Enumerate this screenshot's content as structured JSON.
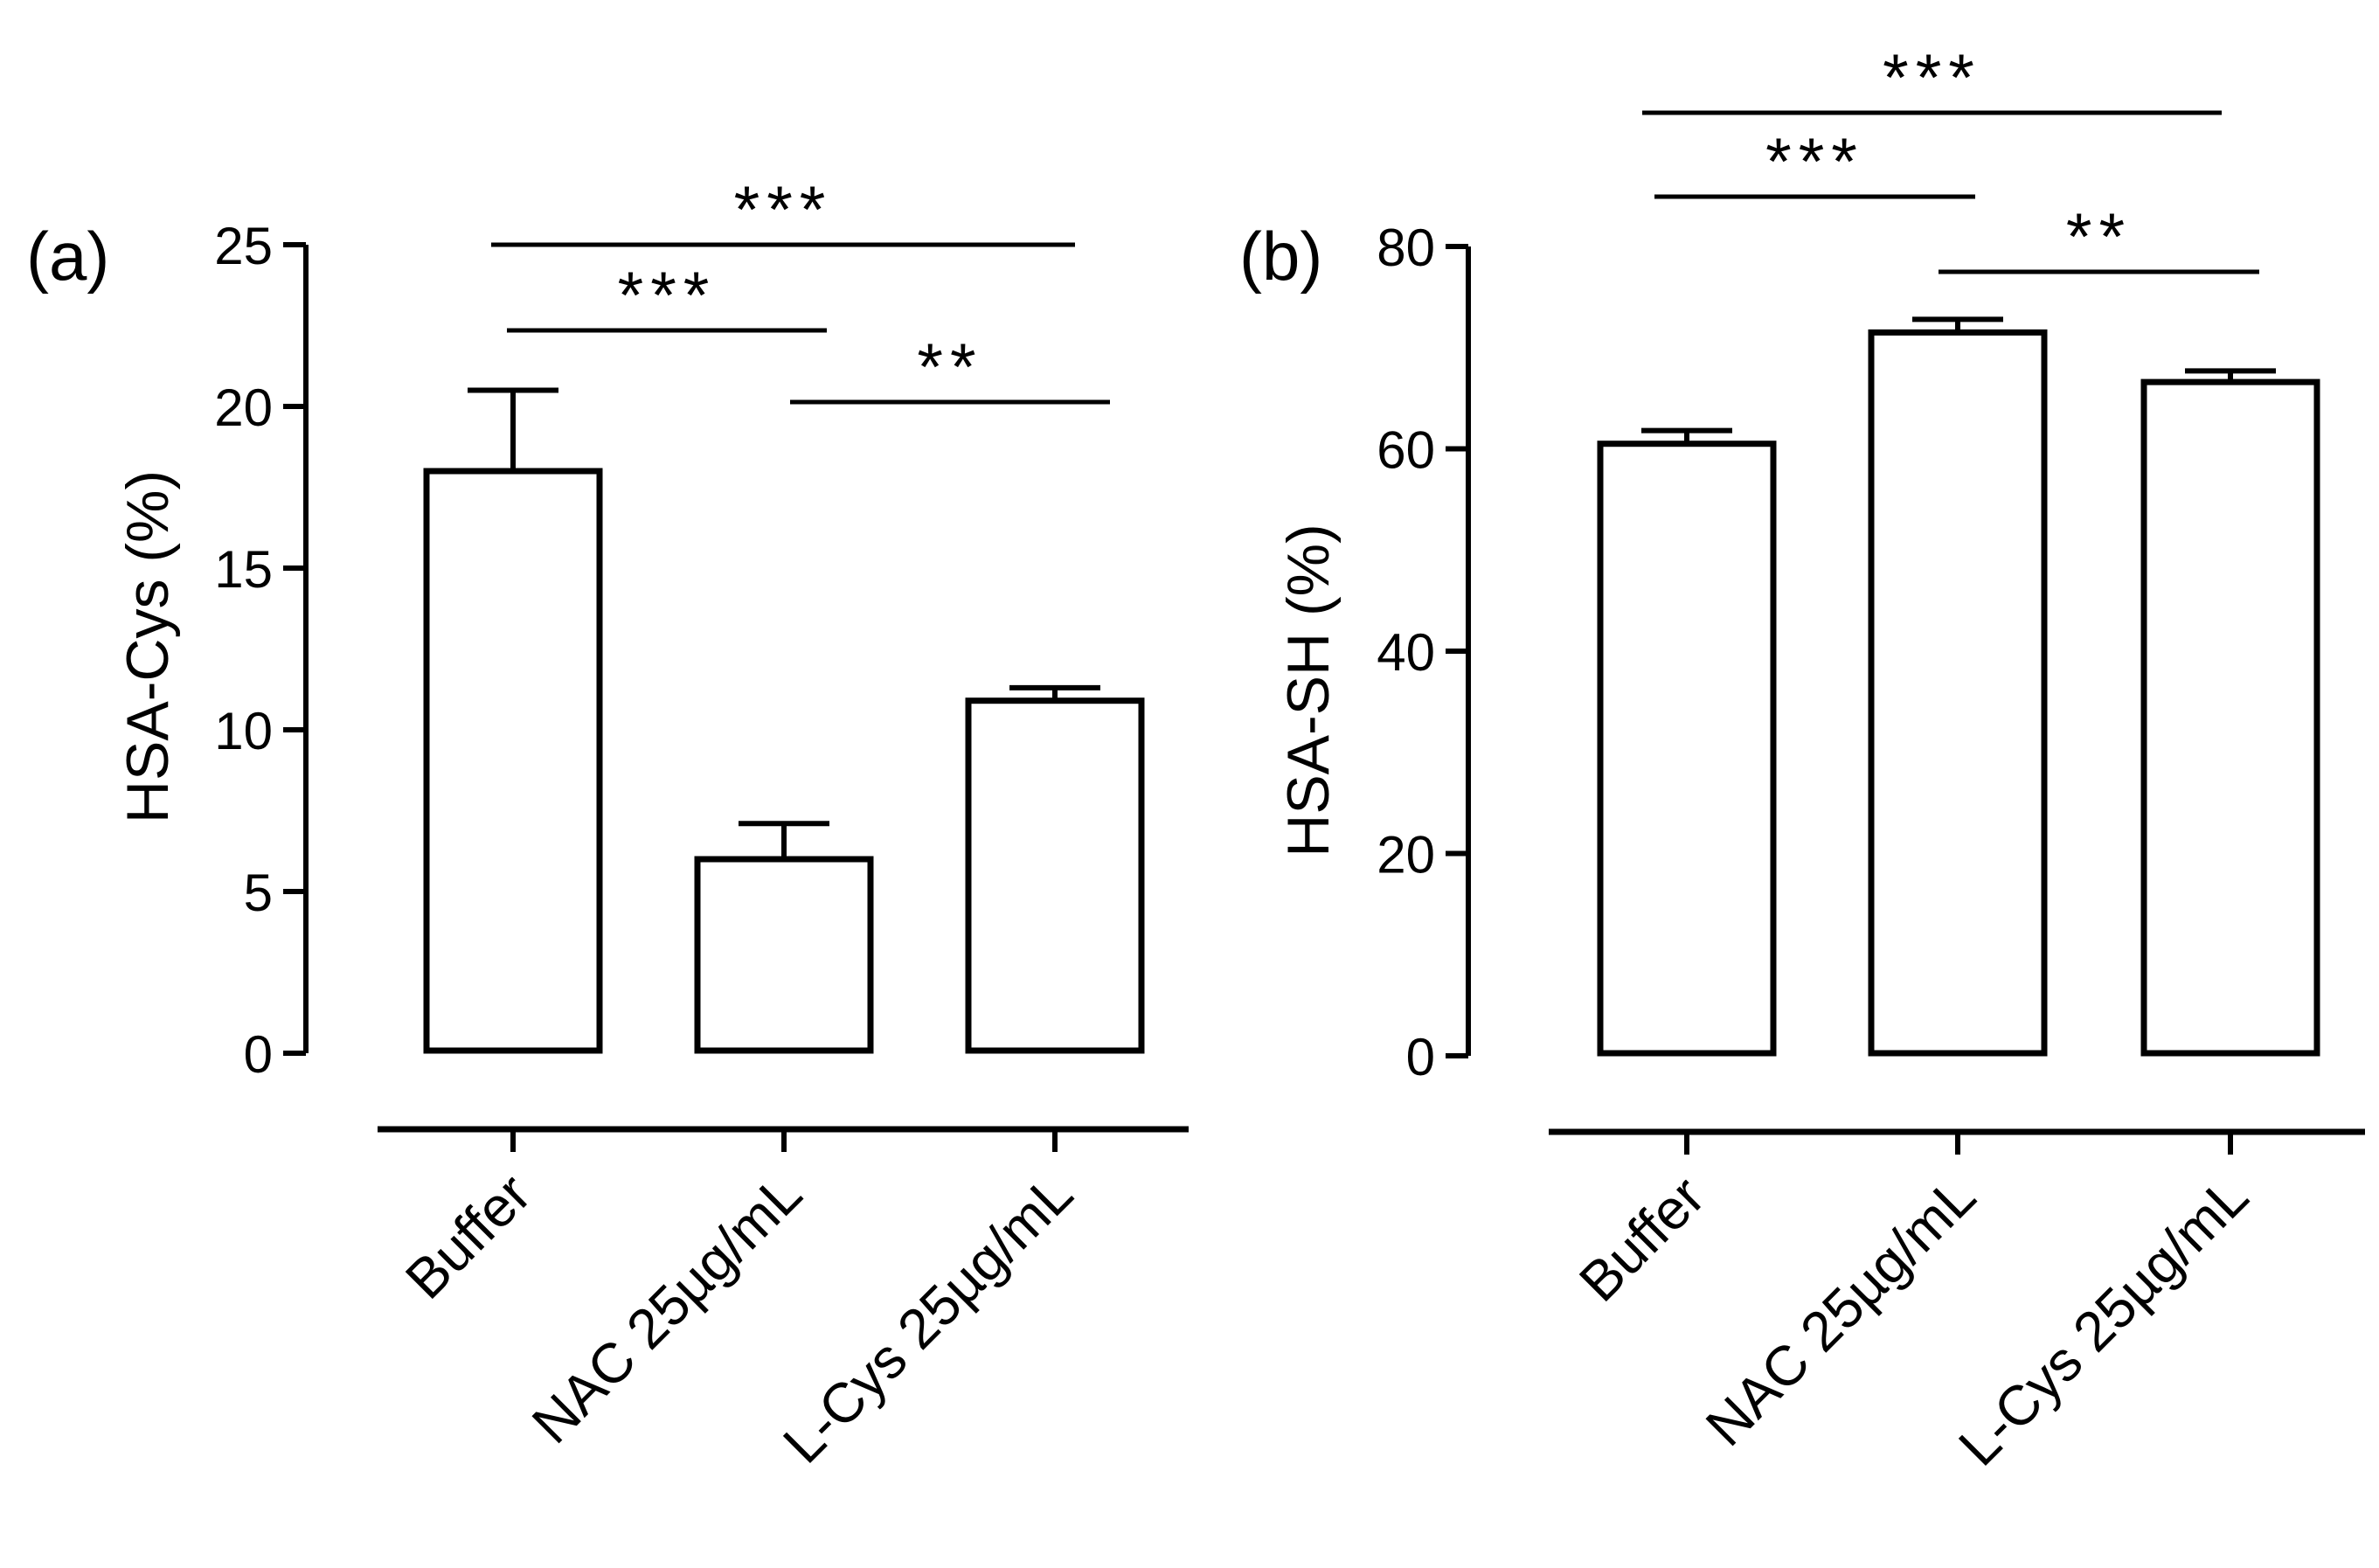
{
  "chart_data": [
    {
      "panel_label": "(a)",
      "type": "bar",
      "title": "",
      "xlabel": "",
      "ylabel": "HSA-Cys (%)",
      "ylim": [
        0,
        25
      ],
      "yticks": [
        0,
        5,
        10,
        15,
        20,
        25
      ],
      "categories": [
        "Buffer",
        "NAC 25µg/mL",
        "L-Cys 25µg/mL"
      ],
      "values": [
        18.0,
        6.0,
        10.9
      ],
      "errors": [
        2.5,
        1.1,
        0.4
      ],
      "significance": [
        {
          "from": 0,
          "to": 1,
          "label": "***"
        },
        {
          "from": 1,
          "to": 2,
          "label": "**"
        },
        {
          "from": 0,
          "to": 2,
          "label": "***"
        }
      ],
      "bar_fill": "#ffffff",
      "stroke_color": "#000000"
    },
    {
      "panel_label": "(b)",
      "type": "bar",
      "title": "",
      "xlabel": "",
      "ylabel": "HSA-SH   (%)",
      "ylim": [
        0,
        80
      ],
      "yticks": [
        0,
        20,
        40,
        60,
        80
      ],
      "categories": [
        "Buffer",
        "NAC 25µg/mL",
        "L-Cys 25µg/mL"
      ],
      "values": [
        60.5,
        71.5,
        66.6
      ],
      "errors": [
        1.3,
        1.3,
        1.1
      ],
      "significance": [
        {
          "from": 0,
          "to": 1,
          "label": "***"
        },
        {
          "from": 1,
          "to": 2,
          "label": "**"
        },
        {
          "from": 0,
          "to": 2,
          "label": "***"
        }
      ],
      "bar_fill": "#ffffff",
      "stroke_color": "#000000"
    }
  ]
}
